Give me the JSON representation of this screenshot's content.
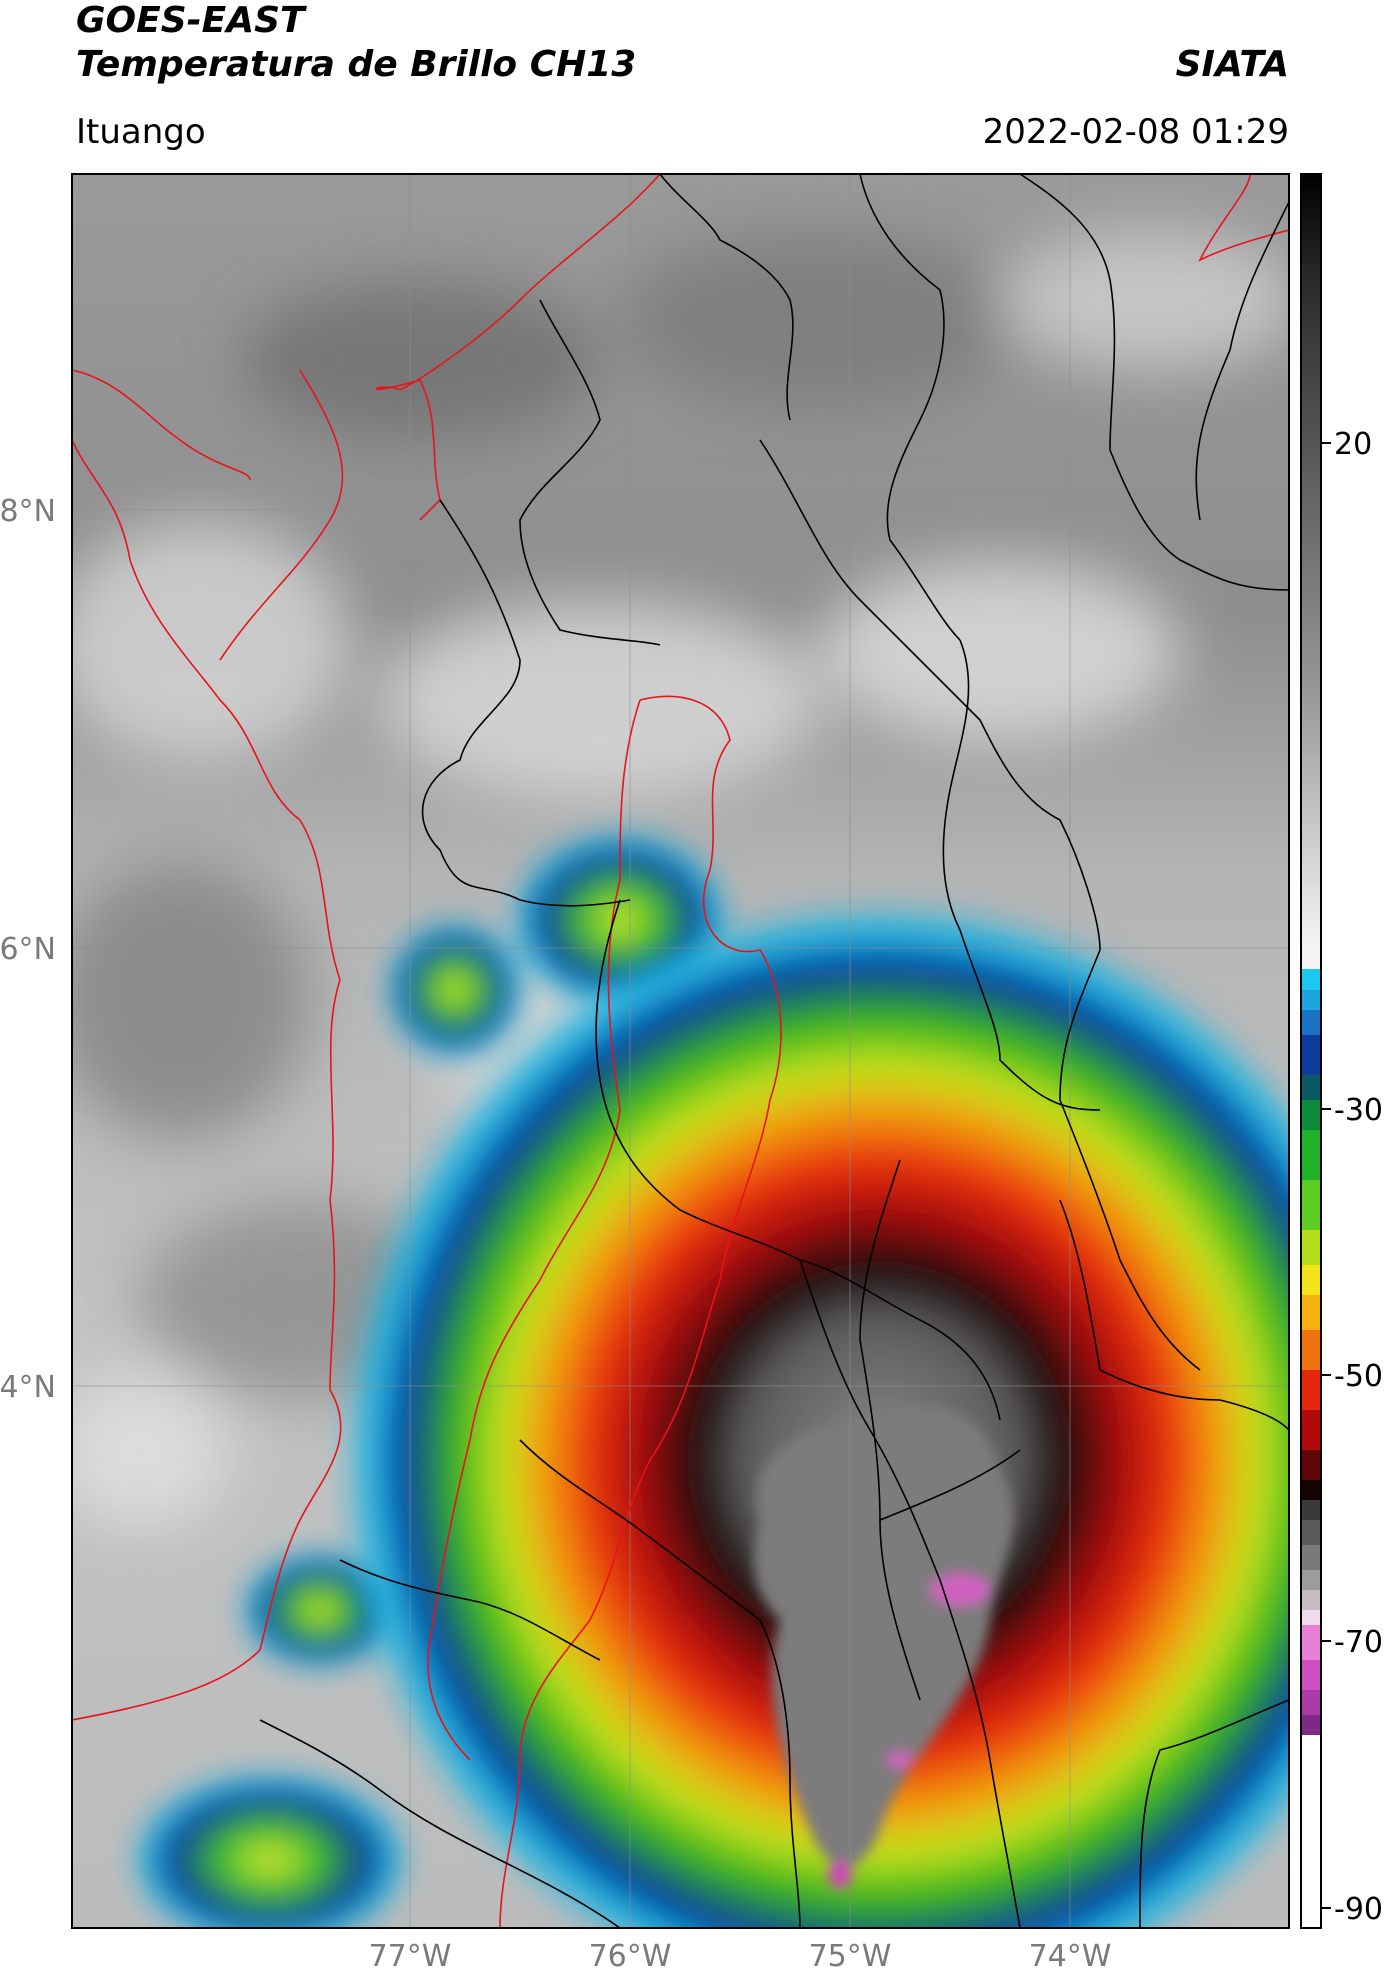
{
  "header": {
    "satellite": "GOES-EAST",
    "product": "Temperatura de Brillo CH13",
    "brand": "SIATA",
    "location": "Ituango",
    "timestamp": "2022-02-08 01:29"
  },
  "map": {
    "lat_labels": [
      "8°N",
      "6°N",
      "4°N"
    ],
    "lon_labels": [
      "77°W",
      "76°W",
      "75°W",
      "74°W"
    ],
    "border_colors": {
      "international": "#e8131b",
      "departments": "#000000"
    },
    "storm_center": {
      "lat": 3.0,
      "lon": -74.8
    }
  },
  "colorbar": {
    "ticks": [
      "20",
      "-30",
      "-50",
      "-70",
      "-90"
    ],
    "range": [
      -90,
      30
    ]
  }
}
